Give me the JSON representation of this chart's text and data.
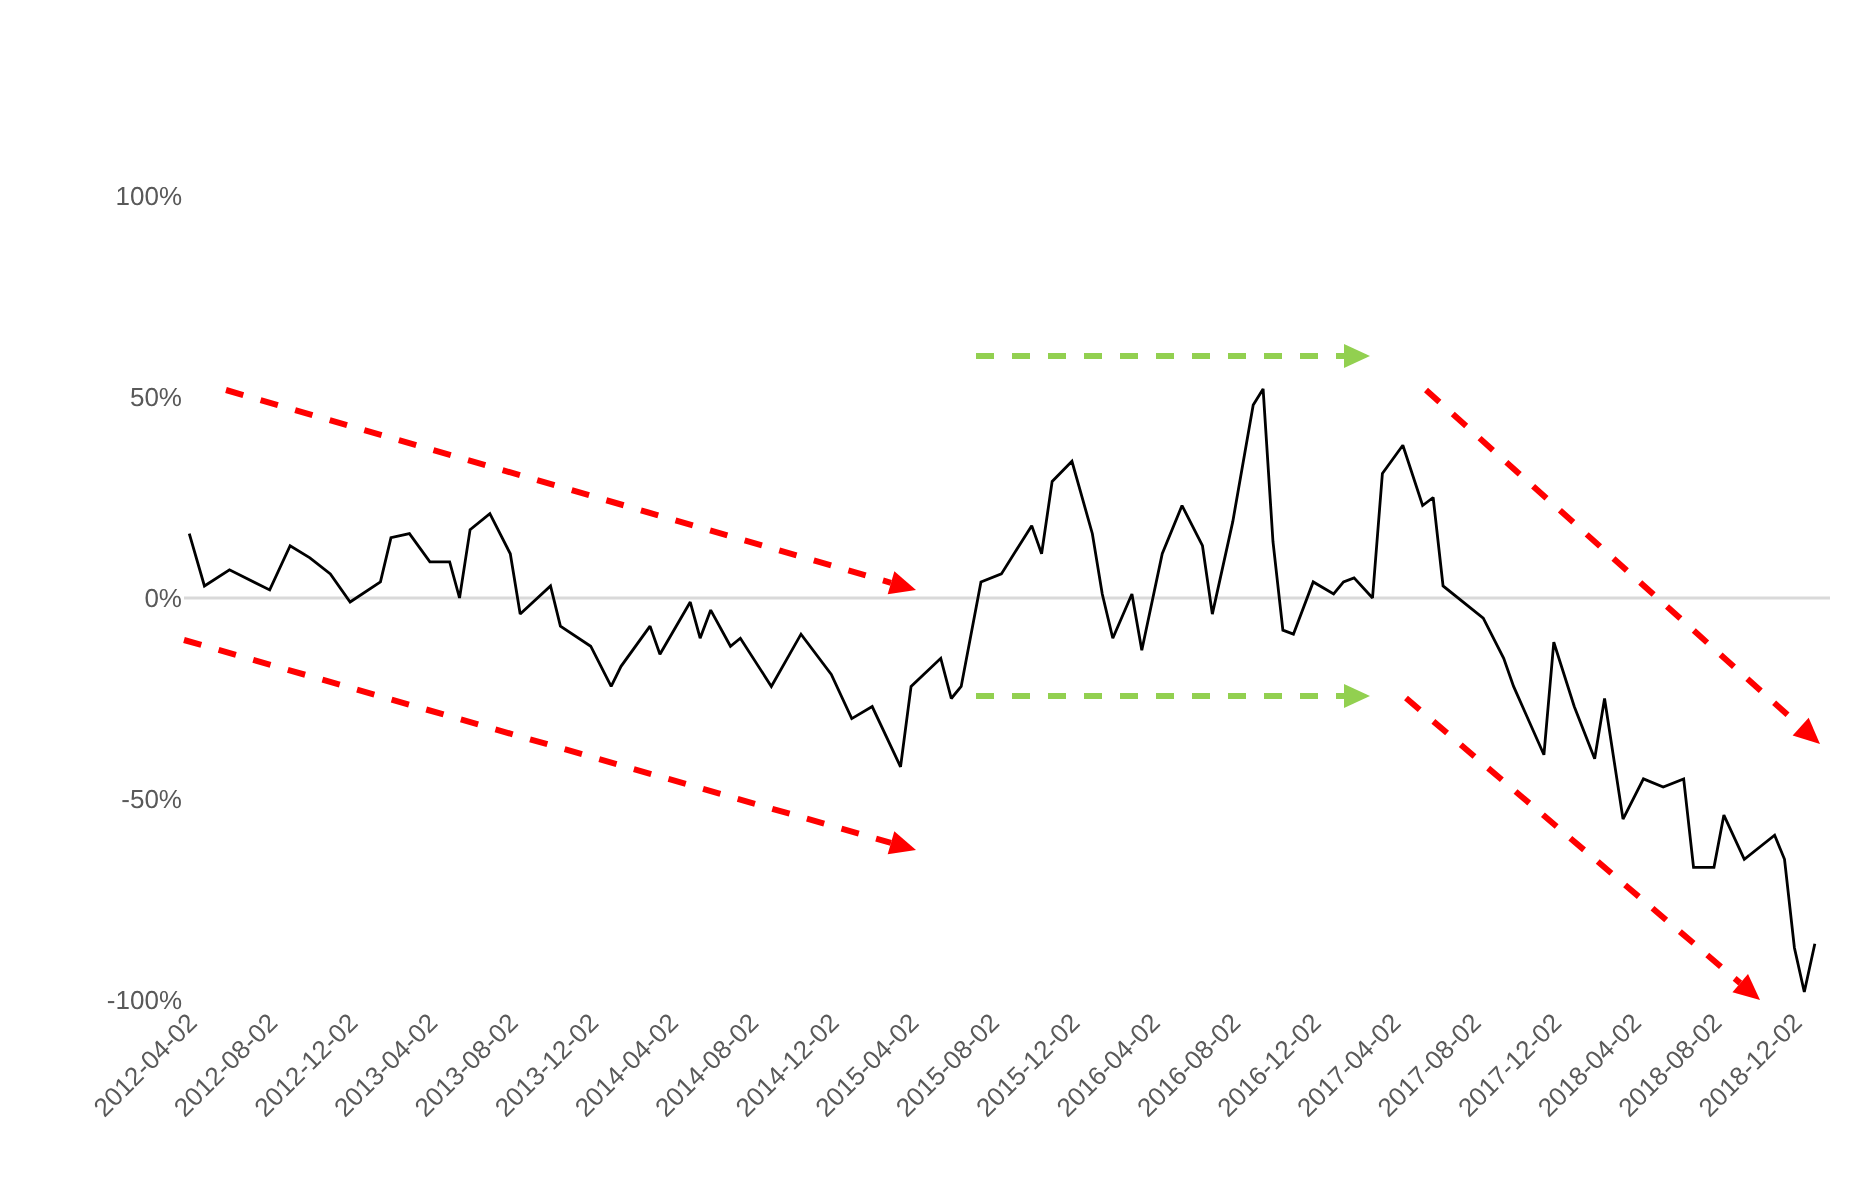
{
  "chart_data": {
    "type": "line",
    "color": "#000000",
    "marker": "none",
    "line_style": "solid",
    "grid": false,
    "x": [
      "2012-04-02",
      "2012-04-25",
      "2012-06-02",
      "2012-08-02",
      "2012-09-02",
      "2012-10-02",
      "2012-11-02",
      "2012-12-02",
      "2013-01-17",
      "2013-02-02",
      "2013-03-02",
      "2013-04-02",
      "2013-05-02",
      "2013-05-17",
      "2013-06-02",
      "2013-07-02",
      "2013-08-02",
      "2013-08-17",
      "2013-10-02",
      "2013-10-17",
      "2013-12-02",
      "2014-01-02",
      "2014-01-17",
      "2014-03-02",
      "2014-03-17",
      "2014-05-02",
      "2014-05-17",
      "2014-06-02",
      "2014-07-02",
      "2014-07-17",
      "2014-09-02",
      "2014-10-17",
      "2014-12-02",
      "2015-01-02",
      "2015-02-02",
      "2015-03-17",
      "2015-04-02",
      "2015-05-17",
      "2015-06-02",
      "2015-06-17",
      "2015-07-17",
      "2015-08-17",
      "2015-10-02",
      "2015-10-17",
      "2015-11-02",
      "2015-12-02",
      "2016-01-02",
      "2016-01-17",
      "2016-02-02",
      "2016-03-02",
      "2016-03-17",
      "2016-04-17",
      "2016-05-17",
      "2016-06-17",
      "2016-07-02",
      "2016-08-02",
      "2016-09-02",
      "2016-09-17",
      "2016-10-02",
      "2016-10-17",
      "2016-11-02",
      "2016-12-02",
      "2017-01-02",
      "2017-01-17",
      "2017-02-02",
      "2017-03-02",
      "2017-03-17",
      "2017-04-17",
      "2017-05-17",
      "2017-06-02",
      "2017-06-17",
      "2017-08-17",
      "2017-09-17",
      "2017-10-02",
      "2017-11-17",
      "2017-12-02",
      "2018-01-02",
      "2018-02-02",
      "2018-02-17",
      "2018-03-17",
      "2018-04-17",
      "2018-05-17",
      "2018-06-17",
      "2018-07-02",
      "2018-08-02",
      "2018-08-17",
      "2018-09-17",
      "2018-11-02",
      "2018-11-17",
      "2018-12-02",
      "2018-12-17",
      "2019-01-02"
    ],
    "values": [
      16,
      3,
      7,
      2,
      13,
      10,
      6,
      -1,
      4,
      15,
      16,
      9,
      9,
      0,
      17,
      21,
      11,
      -4,
      3,
      -7,
      -12,
      -22,
      -17,
      -7,
      -14,
      -1,
      -10,
      -3,
      -12,
      -10,
      -22,
      -9,
      -19,
      -30,
      -27,
      -42,
      -22,
      -15,
      -25,
      -22,
      4,
      6,
      18,
      11,
      29,
      34,
      16,
      1,
      -10,
      1,
      -13,
      11,
      23,
      13,
      -4,
      19,
      48,
      52,
      14,
      -8,
      -9,
      4,
      1,
      4,
      5,
      0,
      31,
      38,
      23,
      25,
      3,
      -5,
      -15,
      -22,
      -39,
      -11,
      -27,
      -40,
      -25,
      -55,
      -45,
      -47,
      -45,
      -67,
      -67,
      -54,
      -65,
      -59,
      -65,
      -87,
      -98,
      -86
    ],
    "xlim": [
      "2012-03-25",
      "2019-01-25"
    ],
    "xticks": [
      "2012-04-02",
      "2012-08-02",
      "2012-12-02",
      "2013-04-02",
      "2013-08-02",
      "2013-12-02",
      "2014-04-02",
      "2014-08-02",
      "2014-12-02",
      "2015-04-02",
      "2015-08-02",
      "2015-12-02",
      "2016-04-02",
      "2016-08-02",
      "2016-12-02",
      "2017-04-02",
      "2017-08-02",
      "2017-12-02",
      "2018-04-02",
      "2018-08-02",
      "2018-12-02"
    ],
    "ylim": [
      -100,
      100
    ],
    "yticks": [
      {
        "value": -100,
        "label": "-100%"
      },
      {
        "value": -50,
        "label": "-50%"
      },
      {
        "value": 0,
        "label": "0%"
      },
      {
        "value": 50,
        "label": "50%"
      },
      {
        "value": 100,
        "label": "100%"
      }
    ],
    "ref_lines": [
      {
        "axis": "y",
        "value": 0,
        "color": "#d9d9d9"
      }
    ]
  }
}
